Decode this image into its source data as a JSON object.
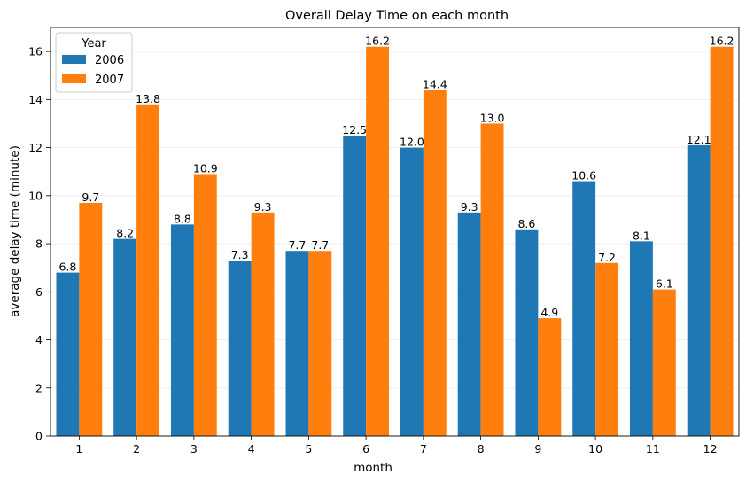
{
  "chart_data": {
    "type": "bar",
    "title": "Overall Delay Time on each month",
    "xlabel": "month",
    "ylabel": "average delay time (minute)",
    "categories": [
      "1",
      "2",
      "3",
      "4",
      "5",
      "6",
      "7",
      "8",
      "9",
      "10",
      "11",
      "12"
    ],
    "series": [
      {
        "name": "2006",
        "color": "#1f77b4",
        "values": [
          6.8,
          8.2,
          8.8,
          7.3,
          7.7,
          12.5,
          12.0,
          9.3,
          8.6,
          10.6,
          8.1,
          12.1
        ]
      },
      {
        "name": "2007",
        "color": "#ff7f0e",
        "values": [
          9.7,
          13.8,
          10.9,
          9.3,
          7.7,
          16.2,
          14.4,
          13.0,
          4.9,
          7.2,
          6.1,
          16.2
        ]
      }
    ],
    "ylim": [
      0,
      17
    ],
    "yticks": [
      0,
      2,
      4,
      6,
      8,
      10,
      12,
      14,
      16
    ],
    "grid": "horizontal, light",
    "legend": {
      "title": "Year",
      "placement": "top-left"
    }
  }
}
